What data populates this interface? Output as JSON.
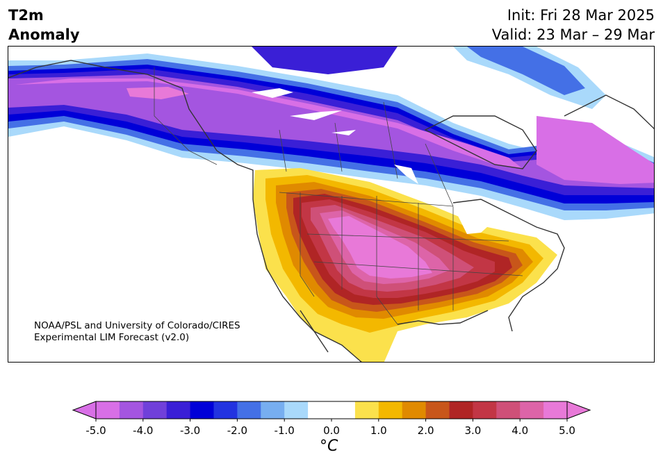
{
  "header": {
    "title_line1": "T2m",
    "title_line2": "Anomaly",
    "init": "Init: Fri 28 Mar 2025",
    "valid": "Valid: 23 Mar – 29 Mar"
  },
  "map": {
    "credit_line1": "NOAA/PSL and University of Colorado/CIRES",
    "credit_line2": "Experimental LIM Forecast (v2.0)"
  },
  "colorbar": {
    "unit_label": "°C",
    "ticks": [
      "-5.0",
      "-4.0",
      "-3.0",
      "-2.0",
      "-1.0",
      "0.0",
      "1.0",
      "2.0",
      "3.0",
      "4.0",
      "5.0"
    ],
    "colors": [
      "#d86fe6",
      "#a455e0",
      "#7040da",
      "#3a1fd6",
      "#0000d8",
      "#2233e0",
      "#4470e6",
      "#77aef0",
      "#a9d9fb",
      "#ffffff",
      "#ffffff",
      "#fbe14c",
      "#f3b800",
      "#e08a00",
      "#c8561a",
      "#b02525",
      "#c23645",
      "#cf5078",
      "#dd64a8",
      "#e879d8"
    ],
    "under_color": "#d86fe6",
    "over_color": "#e879d8"
  }
}
